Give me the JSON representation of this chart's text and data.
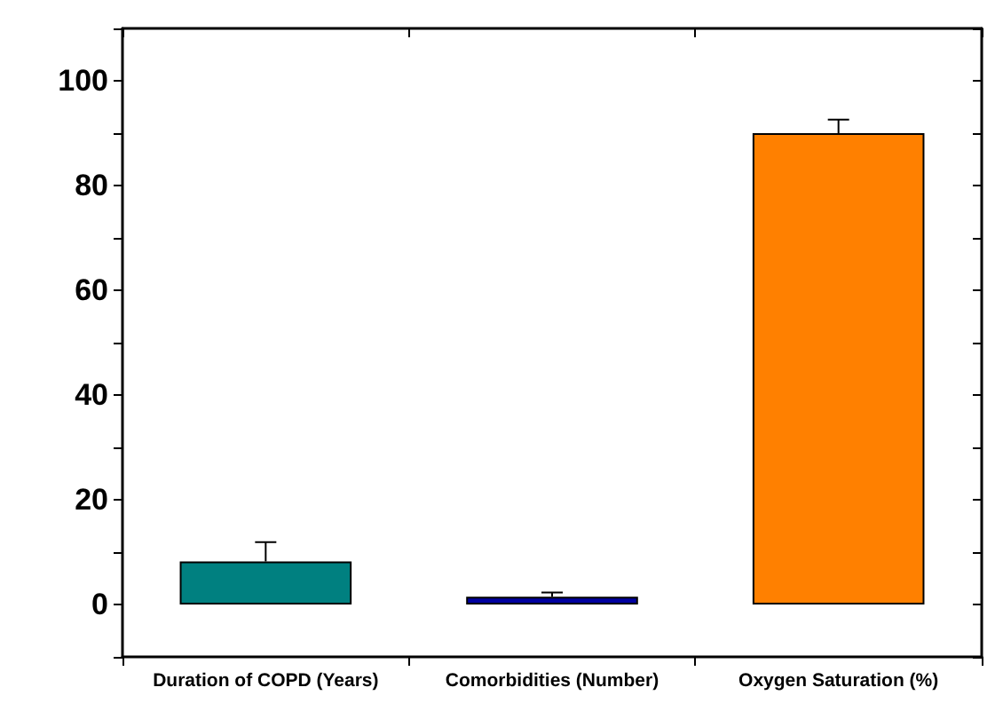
{
  "chart_data": {
    "type": "bar",
    "categories": [
      "Duration of COPD (Years)",
      "Comorbidities (Number)",
      "Oxygen Saturation (%)"
    ],
    "values": [
      8.2,
      1.5,
      90.0
    ],
    "colors": [
      "#008080",
      "#0000a0",
      "#ff8000"
    ],
    "errors": [
      [
        8.2,
        11.9
      ],
      [
        1.5,
        2.3
      ],
      [
        90.0,
        92.6
      ]
    ],
    "ylim": [
      -10,
      110
    ],
    "yticks": [
      0,
      20,
      40,
      60,
      80,
      100
    ],
    "grid": false
  }
}
